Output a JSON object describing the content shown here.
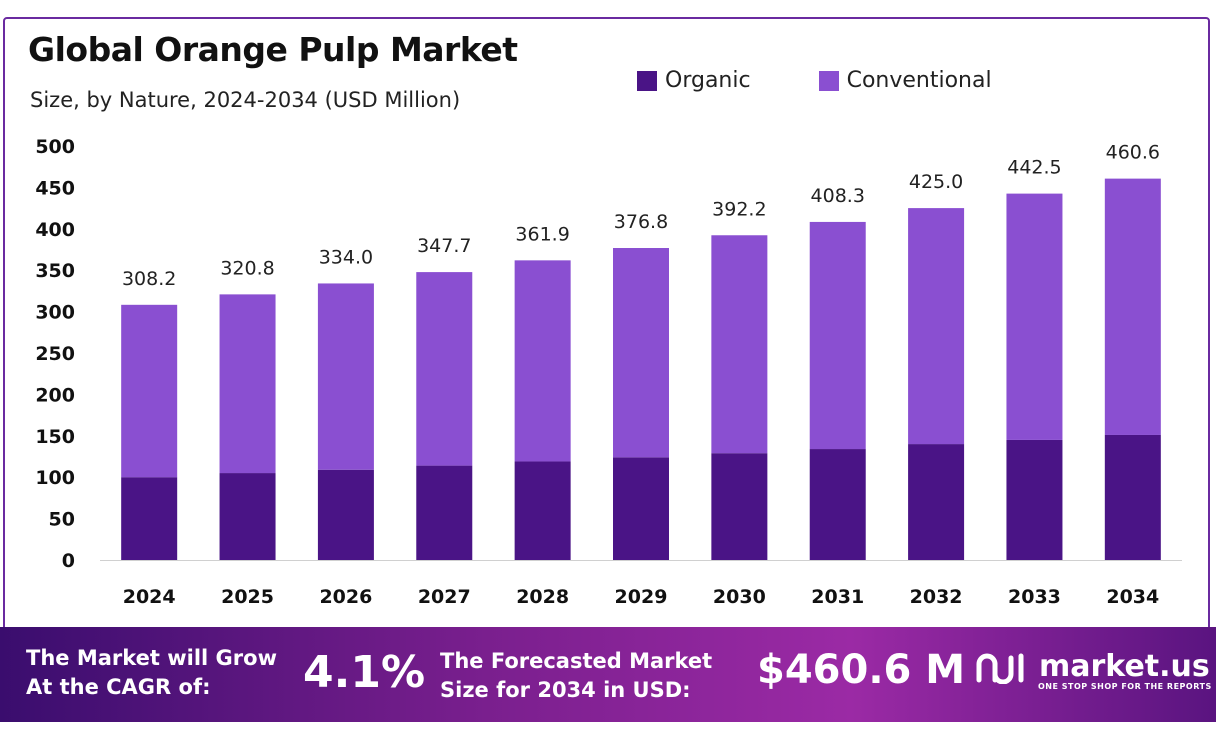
{
  "header": {
    "title": "Global Orange Pulp Market",
    "subtitle": "Size, by Nature, 2024-2034 (USD Million)"
  },
  "colors": {
    "organic": "#4a1486",
    "conventional": "#8a4fd1",
    "frame": "#6a2aa0"
  },
  "chart_data": {
    "type": "bar",
    "stacked": true,
    "categories": [
      "2024",
      "2025",
      "2026",
      "2027",
      "2028",
      "2029",
      "2030",
      "2031",
      "2032",
      "2033",
      "2034"
    ],
    "series": [
      {
        "name": "Organic",
        "values": [
          100,
          105,
          109,
          114,
          119,
          124,
          129,
          134,
          140,
          145,
          151
        ]
      },
      {
        "name": "Conventional",
        "values": [
          208.2,
          215.8,
          225.0,
          233.7,
          242.9,
          252.8,
          263.2,
          274.3,
          285.0,
          297.5,
          309.6
        ]
      }
    ],
    "totals": [
      "308.2",
      "320.8",
      "334.0",
      "347.7",
      "361.9",
      "376.8",
      "392.2",
      "408.3",
      "425.0",
      "442.5",
      "460.6"
    ],
    "yticks": [
      "0",
      "50",
      "100",
      "150",
      "200",
      "250",
      "300",
      "350",
      "400",
      "450",
      "500"
    ],
    "ylim": [
      0,
      500
    ],
    "legend_position": "top-right",
    "grid": false
  },
  "footer": {
    "cagr_label_line1": "The Market will Grow",
    "cagr_label_line2": "At the CAGR of:",
    "cagr_value": "4.1%",
    "forecast_label_line1": "The Forecasted Market",
    "forecast_label_line2": "Size for 2034 in USD:",
    "forecast_value": "$460.6 M",
    "brand_name": "market.us",
    "brand_tagline": "ONE STOP SHOP FOR THE REPORTS"
  }
}
